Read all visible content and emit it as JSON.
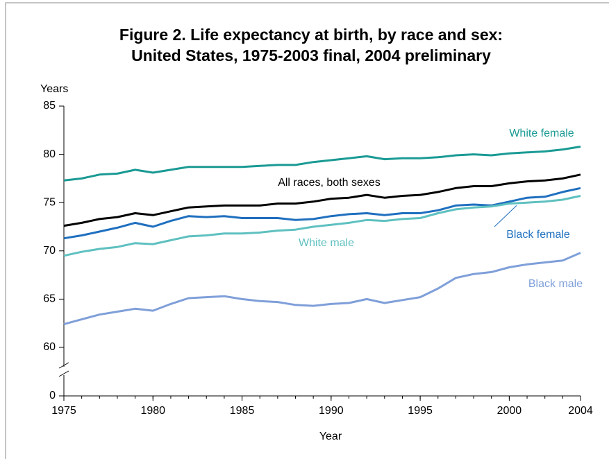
{
  "chart_data": {
    "type": "line",
    "title": [
      "Figure 2. Life expectancy at birth, by race and sex:",
      "United States, 1975-2003 final, 2004 preliminary"
    ],
    "y_label": "Years",
    "x_label": "Year",
    "x": [
      1975,
      1976,
      1977,
      1978,
      1979,
      1980,
      1981,
      1982,
      1983,
      1984,
      1985,
      1986,
      1987,
      1988,
      1989,
      1990,
      1991,
      1992,
      1993,
      1994,
      1995,
      1996,
      1997,
      1998,
      1999,
      2000,
      2001,
      2002,
      2003,
      2004
    ],
    "series": [
      {
        "name": "White female",
        "color": "#1a9a94",
        "values": [
          77.3,
          77.5,
          77.9,
          78.0,
          78.4,
          78.1,
          78.4,
          78.7,
          78.7,
          78.7,
          78.7,
          78.8,
          78.9,
          78.9,
          79.2,
          79.4,
          79.6,
          79.8,
          79.5,
          79.6,
          79.6,
          79.7,
          79.9,
          80.0,
          79.9,
          80.1,
          80.2,
          80.3,
          80.5,
          80.8
        ]
      },
      {
        "name": "All races, both sexes",
        "color": "#000000",
        "values": [
          72.6,
          72.9,
          73.3,
          73.5,
          73.9,
          73.7,
          74.1,
          74.5,
          74.6,
          74.7,
          74.7,
          74.7,
          74.9,
          74.9,
          75.1,
          75.4,
          75.5,
          75.8,
          75.5,
          75.7,
          75.8,
          76.1,
          76.5,
          76.7,
          76.7,
          77.0,
          77.2,
          77.3,
          77.5,
          77.9
        ]
      },
      {
        "name": "Black female",
        "color": "#1f6fbf",
        "values": [
          71.3,
          71.6,
          72.0,
          72.4,
          72.9,
          72.5,
          73.1,
          73.6,
          73.5,
          73.6,
          73.4,
          73.4,
          73.4,
          73.2,
          73.3,
          73.6,
          73.8,
          73.9,
          73.7,
          73.9,
          73.9,
          74.2,
          74.7,
          74.8,
          74.7,
          75.1,
          75.5,
          75.6,
          76.1,
          76.5
        ]
      },
      {
        "name": "White male",
        "color": "#5fc0c0",
        "values": [
          69.5,
          69.9,
          70.2,
          70.4,
          70.8,
          70.7,
          71.1,
          71.5,
          71.6,
          71.8,
          71.8,
          71.9,
          72.1,
          72.2,
          72.5,
          72.7,
          72.9,
          73.2,
          73.1,
          73.3,
          73.4,
          73.9,
          74.3,
          74.5,
          74.6,
          74.9,
          75.0,
          75.1,
          75.3,
          75.7
        ]
      },
      {
        "name": "Black male",
        "color": "#7f9fd9",
        "values": [
          62.4,
          62.9,
          63.4,
          63.7,
          64.0,
          63.8,
          64.5,
          65.1,
          65.2,
          65.3,
          65.0,
          64.8,
          64.7,
          64.4,
          64.3,
          64.5,
          64.6,
          65.0,
          64.6,
          64.9,
          65.2,
          66.1,
          67.2,
          67.6,
          67.8,
          68.3,
          68.6,
          68.8,
          69.0,
          69.8
        ]
      }
    ],
    "xlim": [
      1975,
      2004
    ],
    "xticks": [
      1975,
      1980,
      1985,
      1990,
      1995,
      2000,
      2004
    ],
    "ylim": [
      0,
      85
    ],
    "yticks": [
      0,
      60,
      65,
      70,
      75,
      80,
      85
    ],
    "y_break": [
      0,
      60
    ],
    "grid": false
  }
}
